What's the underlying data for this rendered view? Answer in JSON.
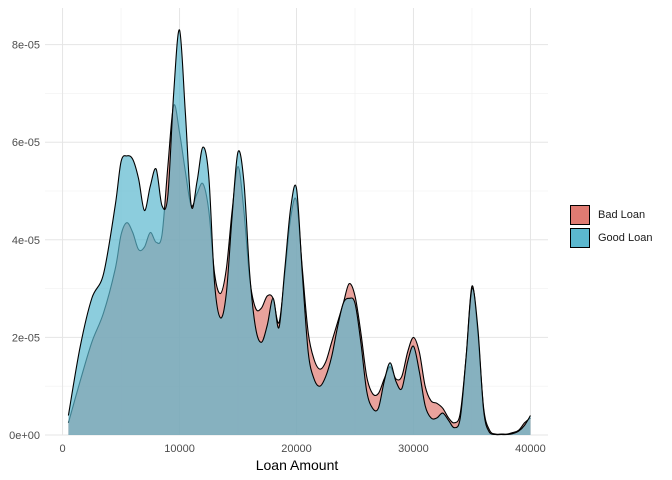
{
  "chart_data": {
    "type": "area",
    "title": "",
    "xlabel": "Loan Amount",
    "ylabel": "",
    "xlim": [
      -1500,
      41500
    ],
    "ylim": [
      0,
      8.75e-05
    ],
    "x_ticks": [
      0,
      10000,
      20000,
      30000,
      40000
    ],
    "x_tick_labels": [
      "0",
      "10000",
      "20000",
      "30000",
      "40000"
    ],
    "y_ticks": [
      0,
      2e-05,
      4e-05,
      6e-05,
      8e-05
    ],
    "y_tick_labels": [
      "0e+00",
      "2e-05",
      "4e-05",
      "6e-05",
      "8e-05"
    ],
    "grid": true,
    "legend_position": "right",
    "x": [
      500,
      1500,
      2500,
      3500,
      4500,
      5000,
      5500,
      6000,
      6500,
      7000,
      7500,
      8000,
      8500,
      9000,
      9500,
      10000,
      10500,
      11000,
      11500,
      12000,
      12500,
      13000,
      13500,
      14000,
      14500,
      15000,
      15500,
      16000,
      16500,
      17000,
      17500,
      18000,
      18500,
      19000,
      19500,
      20000,
      20500,
      21000,
      21500,
      22000,
      22500,
      23000,
      23500,
      24000,
      24500,
      25000,
      25500,
      26000,
      26500,
      27000,
      27500,
      28000,
      28500,
      29000,
      29500,
      30000,
      30500,
      31000,
      31500,
      32000,
      32500,
      33000,
      33500,
      34000,
      34500,
      35000,
      35500,
      36000,
      36500,
      37000,
      37500,
      38000,
      38500,
      39000,
      39500,
      40000
    ],
    "series": [
      {
        "name": "Bad Loan",
        "color": "#E07B72",
        "values": [
          2.5e-06,
          1.1e-05,
          1.9e-05,
          2.5e-05,
          3.4e-05,
          4.1e-05,
          4.35e-05,
          4.15e-05,
          3.8e-05,
          3.85e-05,
          4.15e-05,
          3.95e-05,
          4.1e-05,
          5.5e-05,
          6.75e-05,
          6.2e-05,
          5.4e-05,
          4.7e-05,
          4.95e-05,
          5.15e-05,
          4.6e-05,
          3.3e-05,
          2.9e-05,
          3.4e-05,
          4.6e-05,
          5.5e-05,
          4.6e-05,
          3.2e-05,
          2.6e-05,
          2.6e-05,
          2.85e-05,
          2.8e-05,
          2.3e-05,
          3.3e-05,
          4.45e-05,
          4.8e-05,
          3.4e-05,
          2.1e-05,
          1.55e-05,
          1.35e-05,
          1.5e-05,
          1.9e-05,
          2.3e-05,
          2.7e-05,
          3.1e-05,
          2.85e-05,
          2.1e-05,
          1.2e-05,
          8.5e-06,
          8.5e-06,
          1.15e-05,
          1.4e-05,
          1.15e-05,
          1.2e-05,
          1.7e-05,
          2e-05,
          1.7e-05,
          1e-05,
          7e-06,
          6.5e-06,
          5.5e-06,
          3.5e-06,
          2.5e-06,
          4.5e-06,
          1.6e-05,
          3.05e-05,
          2.1e-05,
          5.5e-06,
          1e-06,
          2e-07,
          2e-07,
          2e-07,
          5e-07,
          1e-06,
          2.5e-06,
          3.5e-06
        ]
      },
      {
        "name": "Good Loan",
        "color": "#5BB8CF",
        "values": [
          4e-06,
          1.8e-05,
          2.8e-05,
          3.3e-05,
          4.7e-05,
          5.6e-05,
          5.72e-05,
          5.65e-05,
          5.25e-05,
          4.6e-05,
          5.1e-05,
          5.45e-05,
          4.7e-05,
          4.9e-05,
          7e-05,
          8.3e-05,
          6.6e-05,
          4.7e-05,
          5.2e-05,
          5.9e-05,
          5.3e-05,
          3.1e-05,
          2.4e-05,
          2.9e-05,
          4.5e-05,
          5.8e-05,
          5.2e-05,
          3.3e-05,
          2.2e-05,
          1.9e-05,
          2.25e-05,
          2.8e-05,
          2.2e-05,
          3.4e-05,
          4.65e-05,
          5.05e-05,
          3.3e-05,
          1.7e-05,
          1.15e-05,
          1e-05,
          1.2e-05,
          1.6e-05,
          2.2e-05,
          2.7e-05,
          2.8e-05,
          2.7e-05,
          1.9e-05,
          9e-06,
          5.5e-06,
          5.5e-06,
          1.1e-05,
          1.48e-05,
          1.1e-05,
          9.5e-06,
          1.5e-05,
          1.82e-05,
          1.3e-05,
          6e-06,
          3.5e-06,
          3.5e-06,
          4.5e-06,
          3e-06,
          1.5e-06,
          3.5e-06,
          1.6e-05,
          3e-05,
          2.2e-05,
          5e-06,
          5e-07,
          1e-07,
          1e-07,
          1e-07,
          3e-07,
          8e-07,
          2e-06,
          4e-06
        ]
      }
    ]
  }
}
